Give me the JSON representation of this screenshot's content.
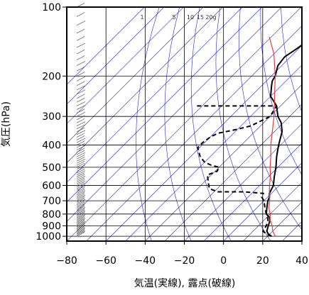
{
  "chart_data": {
    "type": "line",
    "xlabel": "気温(実線), 露点(破線)",
    "ylabel": "気圧(hPa)",
    "xlim": [
      -80,
      40
    ],
    "ylim": [
      1050,
      100
    ],
    "y_scale": "log",
    "x_ticks": [
      -80,
      -60,
      -40,
      -20,
      0,
      20,
      40
    ],
    "x_tick_labels": [
      "−80",
      "−60",
      "−40",
      "−20",
      "0",
      "20",
      "40"
    ],
    "y_ticks": [
      100,
      200,
      300,
      400,
      500,
      600,
      700,
      800,
      900,
      1000
    ],
    "y_tick_labels": [
      "100",
      "200",
      "300",
      "400",
      "500",
      "600",
      "700",
      "800",
      "900",
      "1000"
    ],
    "grid": true,
    "mixing_ratio_labels": [
      "1",
      "5",
      "10",
      "15",
      "20g"
    ],
    "series": [
      {
        "name": "temperature",
        "style": "solid",
        "color": "#000000",
        "points": [
          [
            22,
            1000
          ],
          [
            19,
            975
          ],
          [
            17,
            950
          ],
          [
            15,
            900
          ],
          [
            13,
            850
          ],
          [
            11,
            825
          ],
          [
            8,
            800
          ],
          [
            5,
            750
          ],
          [
            2,
            700
          ],
          [
            1,
            675
          ],
          [
            -1,
            650
          ],
          [
            -3,
            600
          ],
          [
            -7,
            550
          ],
          [
            -11,
            500
          ],
          [
            -16,
            450
          ],
          [
            -21,
            400
          ],
          [
            -26,
            350
          ],
          [
            -31,
            320
          ],
          [
            -36,
            300
          ],
          [
            -42,
            270
          ],
          [
            -50,
            245
          ],
          [
            -55,
            220
          ],
          [
            -57,
            210
          ],
          [
            -58,
            200
          ],
          [
            -62,
            180
          ],
          [
            -63,
            165
          ],
          [
            -61,
            152
          ],
          [
            -60,
            145
          ],
          [
            -62,
            138
          ],
          [
            -62,
            125
          ],
          [
            -64,
            117
          ],
          [
            -65,
            110
          ],
          [
            -66,
            104
          ],
          [
            -67,
            100
          ]
        ]
      },
      {
        "name": "dewpoint",
        "style": "dashed",
        "color": "#000000",
        "points": [
          [
            22,
            1000
          ],
          [
            18,
            975
          ],
          [
            15,
            950
          ],
          [
            14,
            900
          ],
          [
            12,
            850
          ],
          [
            8,
            800
          ],
          [
            4,
            750
          ],
          [
            0,
            700
          ],
          [
            -3,
            675
          ],
          [
            -4,
            650
          ],
          [
            -15,
            640
          ],
          [
            -28,
            640
          ],
          [
            -34,
            620
          ],
          [
            -37,
            590
          ],
          [
            -40,
            560
          ],
          [
            -42,
            540
          ],
          [
            -39,
            520
          ],
          [
            -40,
            500
          ],
          [
            -45,
            490
          ],
          [
            -50,
            475
          ],
          [
            -55,
            450
          ],
          [
            -58,
            430
          ],
          [
            -61,
            410
          ],
          [
            -61,
            390
          ],
          [
            -60,
            370
          ],
          [
            -58,
            355
          ],
          [
            -52,
            345
          ],
          [
            -45,
            330
          ],
          [
            -40,
            300
          ],
          [
            -42,
            270
          ],
          [
            -60,
            270
          ],
          [
            -83,
            270
          ]
        ]
      },
      {
        "name": "reference",
        "style": "solid",
        "color": "#e83c3c",
        "points": [
          [
            24,
            1000
          ],
          [
            20,
            950
          ],
          [
            17,
            900
          ],
          [
            13,
            850
          ],
          [
            10,
            800
          ],
          [
            6,
            750
          ],
          [
            3,
            700
          ],
          [
            -1,
            650
          ],
          [
            -5,
            600
          ],
          [
            -9,
            550
          ],
          [
            -14,
            500
          ],
          [
            -19,
            450
          ],
          [
            -25,
            400
          ],
          [
            -31,
            350
          ],
          [
            -38,
            300
          ],
          [
            -47,
            250
          ],
          [
            -58,
            200
          ],
          [
            -70,
            160
          ],
          [
            -81,
            135
          ]
        ]
      }
    ],
    "colors": {
      "grid": "#000000",
      "guide_lines": "#2222cc",
      "temperature": "#000000",
      "dewpoint": "#000000",
      "reference": "#e83c3c",
      "wind": "#555555"
    }
  }
}
